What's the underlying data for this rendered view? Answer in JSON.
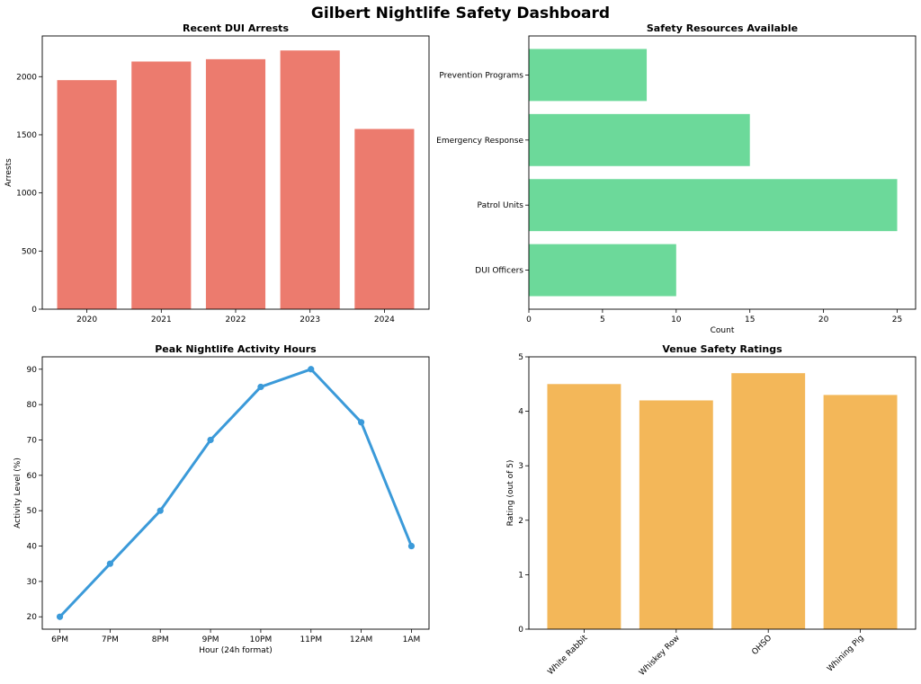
{
  "title": "Gilbert Nightlife Safety Dashboard",
  "chart_data": [
    {
      "type": "bar",
      "title": "Recent DUI Arrests",
      "categories": [
        "2020",
        "2021",
        "2022",
        "2023",
        "2024"
      ],
      "values": [
        1970,
        2130,
        2150,
        2225,
        1550
      ],
      "xlabel": "",
      "ylabel": "Arrests",
      "ylim": [
        0,
        2350
      ],
      "yticks": [
        0,
        500,
        1000,
        1500,
        2000
      ],
      "color": "#ec7b6e"
    },
    {
      "type": "barh",
      "title": "Safety Resources Available",
      "categories": [
        "DUI Officers",
        "Patrol Units",
        "Emergency Response",
        "Prevention Programs"
      ],
      "values": [
        10,
        25,
        15,
        8
      ],
      "xlabel": "Count",
      "ylabel": "",
      "xlim": [
        0,
        26.25
      ],
      "xticks": [
        0,
        5,
        10,
        15,
        20,
        25
      ],
      "color": "#6cd99a"
    },
    {
      "type": "line",
      "title": "Peak Nightlife Activity Hours",
      "categories": [
        "6PM",
        "7PM",
        "8PM",
        "9PM",
        "10PM",
        "11PM",
        "12AM",
        "1AM"
      ],
      "values": [
        20,
        35,
        50,
        70,
        85,
        90,
        75,
        40
      ],
      "xlabel": "Hour (24h format)",
      "ylabel": "Activity Level (%)",
      "ylim": [
        16.5,
        93.5
      ],
      "yticks": [
        20,
        30,
        40,
        50,
        60,
        70,
        80,
        90
      ],
      "color": "#3b9ad9"
    },
    {
      "type": "bar",
      "title": "Venue Safety Ratings",
      "categories": [
        "White Rabbit",
        "Whiskey Row",
        "OHSO",
        "Whining Pig"
      ],
      "values": [
        4.5,
        4.2,
        4.7,
        4.3
      ],
      "xlabel": "",
      "ylabel": "Rating (out of 5)",
      "ylim": [
        0,
        5
      ],
      "yticks": [
        0,
        1,
        2,
        3,
        4,
        5
      ],
      "color": "#f3b759"
    }
  ]
}
